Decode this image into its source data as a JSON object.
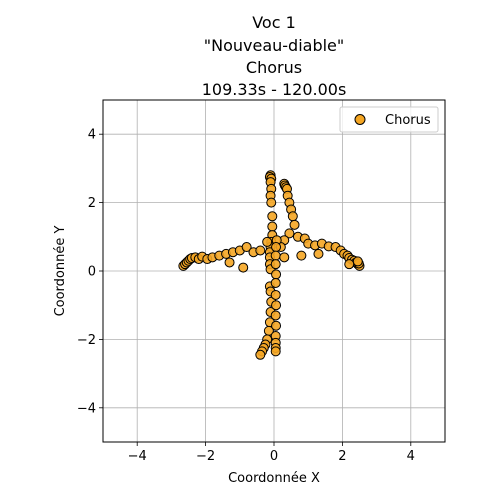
{
  "chart_data": {
    "type": "scatter",
    "title_lines": [
      "Voc 1",
      "\"Nouveau-diable\"",
      "Chorus",
      "109.33s - 120.00s"
    ],
    "xlabel": "Coordonnée X",
    "ylabel": "Coordonnée Y",
    "xlim": [
      -5,
      5
    ],
    "ylim": [
      -5,
      5
    ],
    "xticks": [
      -4,
      -2,
      0,
      2,
      4
    ],
    "yticks": [
      -4,
      -2,
      0,
      2,
      4
    ],
    "grid": true,
    "legend_position": "top-right",
    "colors": {
      "marker_fill": "#f5a623",
      "marker_edge": "#000000",
      "grid": "#b0b0b0"
    },
    "series": [
      {
        "name": "Chorus",
        "points": [
          [
            -0.1,
            2.8
          ],
          [
            -0.12,
            2.75
          ],
          [
            -0.08,
            2.7
          ],
          [
            -0.1,
            2.6
          ],
          [
            -0.08,
            2.4
          ],
          [
            -0.1,
            2.2
          ],
          [
            -0.08,
            2.0
          ],
          [
            -0.05,
            1.6
          ],
          [
            -0.05,
            1.3
          ],
          [
            -0.05,
            1.05
          ],
          [
            -0.08,
            0.85
          ],
          [
            -0.1,
            0.7
          ],
          [
            -0.12,
            0.55
          ],
          [
            -0.12,
            0.4
          ],
          [
            -0.12,
            0.2
          ],
          [
            -0.1,
            0.05
          ],
          [
            -0.12,
            -0.45
          ],
          [
            -0.1,
            -0.6
          ],
          [
            -0.08,
            -0.9
          ],
          [
            -0.1,
            -1.2
          ],
          [
            -0.12,
            -1.5
          ],
          [
            -0.15,
            -1.75
          ],
          [
            -0.2,
            -2.0
          ],
          [
            -0.25,
            -2.15
          ],
          [
            -0.3,
            -2.25
          ],
          [
            -0.35,
            -2.35
          ],
          [
            -0.4,
            -2.45
          ],
          [
            0.3,
            2.55
          ],
          [
            0.32,
            2.5
          ],
          [
            0.35,
            2.45
          ],
          [
            0.38,
            2.4
          ],
          [
            0.4,
            2.2
          ],
          [
            0.45,
            2.0
          ],
          [
            0.5,
            1.8
          ],
          [
            0.55,
            1.6
          ],
          [
            0.6,
            1.35
          ],
          [
            0.45,
            1.1
          ],
          [
            0.3,
            0.9
          ],
          [
            0.2,
            0.7
          ],
          [
            0.08,
            0.9
          ],
          [
            0.06,
            0.7
          ],
          [
            0.05,
            0.45
          ],
          [
            0.05,
            0.2
          ],
          [
            0.06,
            -0.1
          ],
          [
            0.05,
            -0.35
          ],
          [
            0.05,
            -0.7
          ],
          [
            0.06,
            -1.0
          ],
          [
            0.05,
            -1.3
          ],
          [
            0.06,
            -1.6
          ],
          [
            0.05,
            -1.9
          ],
          [
            0.05,
            -2.1
          ],
          [
            0.05,
            -2.25
          ],
          [
            0.05,
            -2.35
          ],
          [
            -2.65,
            0.15
          ],
          [
            -2.6,
            0.2
          ],
          [
            -2.55,
            0.25
          ],
          [
            -2.5,
            0.3
          ],
          [
            -2.45,
            0.35
          ],
          [
            -2.4,
            0.38
          ],
          [
            -2.3,
            0.4
          ],
          [
            -2.2,
            0.35
          ],
          [
            -2.1,
            0.42
          ],
          [
            -1.95,
            0.35
          ],
          [
            -1.8,
            0.4
          ],
          [
            -1.6,
            0.45
          ],
          [
            -1.4,
            0.5
          ],
          [
            -1.2,
            0.55
          ],
          [
            -1.0,
            0.6
          ],
          [
            -0.8,
            0.7
          ],
          [
            -0.6,
            0.55
          ],
          [
            -0.4,
            0.6
          ],
          [
            -0.2,
            0.85
          ],
          [
            -1.3,
            0.25
          ],
          [
            -0.9,
            0.1
          ],
          [
            0.7,
            1.0
          ],
          [
            0.9,
            0.95
          ],
          [
            1.0,
            0.8
          ],
          [
            1.2,
            0.75
          ],
          [
            1.4,
            0.8
          ],
          [
            1.6,
            0.72
          ],
          [
            1.8,
            0.7
          ],
          [
            1.95,
            0.6
          ],
          [
            2.05,
            0.5
          ],
          [
            2.15,
            0.45
          ],
          [
            2.2,
            0.38
          ],
          [
            2.28,
            0.33
          ],
          [
            2.35,
            0.3
          ],
          [
            2.4,
            0.25
          ],
          [
            2.45,
            0.2
          ],
          [
            2.5,
            0.15
          ],
          [
            2.48,
            0.22
          ],
          [
            2.45,
            0.28
          ],
          [
            1.3,
            0.5
          ],
          [
            0.8,
            0.45
          ],
          [
            0.3,
            0.4
          ],
          [
            2.2,
            0.2
          ]
        ]
      }
    ]
  }
}
